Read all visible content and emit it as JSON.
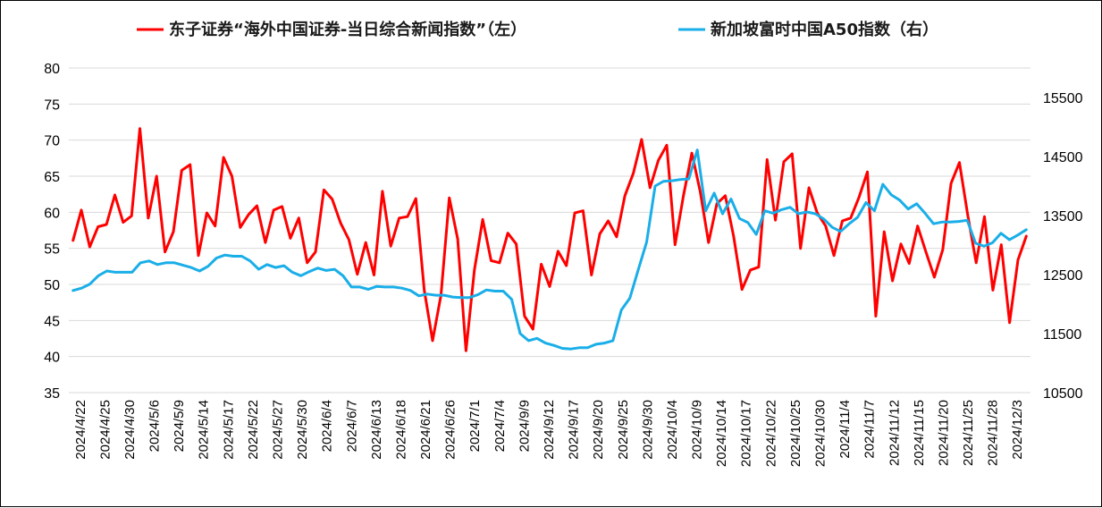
{
  "chart_data": {
    "type": "line",
    "title": "",
    "xlabel": "",
    "ylabel": "",
    "legend_position": "top",
    "grid": true,
    "y_left": {
      "min": 35,
      "max": 80,
      "step": 5,
      "ticks": [
        "80",
        "75",
        "70",
        "65",
        "60",
        "55",
        "50",
        "45",
        "40",
        "35"
      ]
    },
    "y_right": {
      "min": 10500,
      "max": 16000,
      "ticks": [
        "15500",
        "14500",
        "13500",
        "12500",
        "11500",
        "10500"
      ]
    },
    "x_tick_labels": [
      "2024/4/22",
      "2024/4/25",
      "2024/4/30",
      "2024/5/6",
      "2024/5/9",
      "2024/5/14",
      "2024/5/17",
      "2024/5/22",
      "2024/5/27",
      "2024/5/30",
      "2024/6/4",
      "2024/6/7",
      "2024/6/13",
      "2024/6/18",
      "2024/6/21",
      "2024/6/26",
      "2024/7/1",
      "2024/7/4",
      "2024/9/9",
      "2024/9/12",
      "2024/9/17",
      "2024/9/20",
      "2024/9/25",
      "2024/9/30",
      "2024/10/4",
      "2024/10/9",
      "2024/10/14",
      "2024/10/17",
      "2024/10/22",
      "2024/10/25",
      "2024/10/30",
      "2024/11/4",
      "2024/11/7",
      "2024/11/12",
      "2024/11/15",
      "2024/11/20",
      "2024/11/25",
      "2024/11/28",
      "2024/12/3"
    ],
    "series": [
      {
        "name": "东子证券“海外中国证券-当日综合新闻指数”（左）",
        "axis": "left",
        "color": "#ff0000",
        "values": [
          56.1,
          60.3,
          55.2,
          58.0,
          58.3,
          62.4,
          58.6,
          59.5,
          71.6,
          59.2,
          65.0,
          54.5,
          57.3,
          65.8,
          66.6,
          54.0,
          59.9,
          58.1,
          67.6,
          65.0,
          57.9,
          59.7,
          60.9,
          55.8,
          60.3,
          60.8,
          56.4,
          59.2,
          53.0,
          54.5,
          63.1,
          61.8,
          58.5,
          56.2,
          51.4,
          55.8,
          51.3,
          62.9,
          55.3,
          59.2,
          59.4,
          61.9,
          49.2,
          42.2,
          48.5,
          62.0,
          56.3,
          40.8,
          52.0,
          59.0,
          53.3,
          53.0,
          57.1,
          55.6,
          45.6,
          43.8,
          52.8,
          49.7,
          54.6,
          52.6,
          59.9,
          60.2,
          51.3,
          57.0,
          58.8,
          56.6,
          62.3,
          65.4,
          70.1,
          63.4,
          67.2,
          69.3,
          55.5,
          62.3,
          68.2,
          62.9,
          55.8,
          61.2,
          62.3,
          56.7,
          49.3,
          52.0,
          52.4,
          67.3,
          58.9,
          67.0,
          68.1,
          55.0,
          63.4,
          59.9,
          58.1,
          54.0,
          58.8,
          59.2,
          62.1,
          65.6,
          45.6,
          57.3,
          50.5,
          55.6,
          52.9,
          58.1,
          54.5,
          51.0,
          54.8,
          64.0,
          66.9,
          59.6,
          53.0,
          59.4,
          49.2,
          55.5,
          44.7,
          53.4,
          56.7
        ]
      },
      {
        "name": "新加坡富时中国A50指数（右）",
        "axis": "right",
        "color": "#1aaee8",
        "values": [
          12230,
          12270,
          12340,
          12480,
          12560,
          12540,
          12540,
          12540,
          12700,
          12730,
          12670,
          12700,
          12700,
          12660,
          12620,
          12560,
          12640,
          12780,
          12830,
          12810,
          12810,
          12730,
          12590,
          12670,
          12620,
          12650,
          12540,
          12480,
          12550,
          12610,
          12570,
          12590,
          12480,
          12290,
          12290,
          12250,
          12300,
          12290,
          12290,
          12270,
          12230,
          12140,
          12170,
          12150,
          12150,
          12120,
          12110,
          12110,
          12160,
          12240,
          12220,
          12220,
          12080,
          11500,
          11380,
          11420,
          11340,
          11300,
          11250,
          11240,
          11260,
          11260,
          11320,
          11340,
          11380,
          11900,
          12100,
          12580,
          13050,
          14000,
          14080,
          14090,
          14110,
          14120,
          14610,
          13580,
          13880,
          13530,
          13780,
          13450,
          13380,
          13180,
          13580,
          13540,
          13600,
          13640,
          13530,
          13560,
          13530,
          13440,
          13300,
          13230,
          13360,
          13470,
          13720,
          13580,
          14030,
          13850,
          13760,
          13610,
          13700,
          13540,
          13360,
          13390,
          13390,
          13400,
          13420,
          13030,
          12980,
          13040,
          13200,
          13090,
          13170,
          13260
        ]
      }
    ]
  }
}
